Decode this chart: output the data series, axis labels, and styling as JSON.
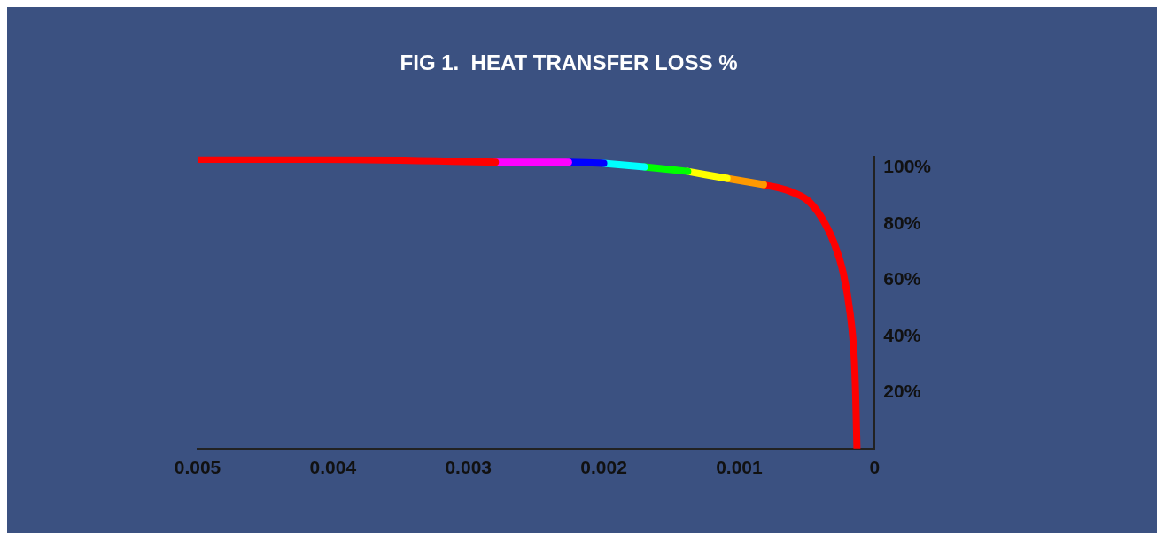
{
  "chart_data": {
    "type": "line",
    "title": "FIG 1.  HEAT TRANSFER LOSS %",
    "series": [
      {
        "color": "#ff0000",
        "x": [
          0.005,
          0.0041,
          0.0028
        ],
        "values": [
          103,
          103,
          102
        ]
      },
      {
        "color": "#ff00ff",
        "x": [
          0.0028,
          0.00226
        ],
        "values": [
          102,
          102
        ]
      },
      {
        "color": "#0000ff",
        "x": [
          0.00226,
          0.002
        ],
        "values": [
          102,
          101.6
        ]
      },
      {
        "color": "#00ffff",
        "x": [
          0.002,
          0.0017
        ],
        "values": [
          101.6,
          100.3
        ]
      },
      {
        "color": "#00ff00",
        "x": [
          0.0017,
          0.00138
        ],
        "values": [
          100.3,
          98.7
        ]
      },
      {
        "color": "#ffff00",
        "x": [
          0.00138,
          0.00109
        ],
        "values": [
          98.7,
          96.2
        ]
      },
      {
        "color": "#ff9900",
        "x": [
          0.00109,
          0.00082
        ],
        "values": [
          96.2,
          94
        ]
      },
      {
        "color": "#ff0000",
        "x": [
          0.00082,
          0.00063,
          0.0005,
          0.0004,
          0.0003,
          0.00023,
          0.00018,
          0.00015,
          0.00014,
          0.00013
        ],
        "values": [
          94,
          91.7,
          88.6,
          82.9,
          73.3,
          62.2,
          47.9,
          32,
          19.4,
          0
        ]
      }
    ],
    "xlim": [
      0.005,
      0
    ],
    "xticks": [
      0.005,
      0.004,
      0.003,
      0.002,
      0.001,
      0
    ],
    "ylim": [
      0,
      104
    ],
    "yticks": [
      {
        "value": 20,
        "label": "20%"
      },
      {
        "value": 40,
        "label": "40%"
      },
      {
        "value": 60,
        "label": "60%"
      },
      {
        "value": 80,
        "label": "80%"
      },
      {
        "value": 100,
        "label": "100%"
      }
    ],
    "marker": "none"
  }
}
